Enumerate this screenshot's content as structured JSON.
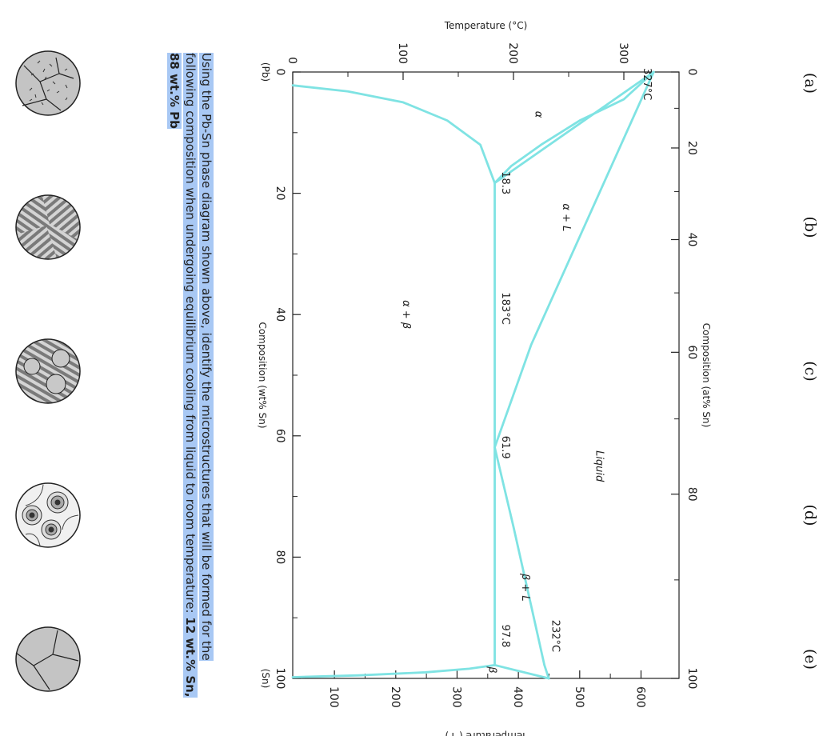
{
  "chart_data": {
    "type": "line",
    "title": "",
    "xlabel": "Composition (wt% Sn)",
    "x2label": "Composition (at% Sn)",
    "ylabel": "Temperature (°C)",
    "y2label": "Temperature (°F)",
    "xlim": [
      0,
      100
    ],
    "ylim": [
      0,
      350
    ],
    "y2lim": [
      32,
      662
    ],
    "x_ticks": [
      0,
      20,
      40,
      60,
      80,
      100
    ],
    "x2_ticks": [
      "0",
      "20",
      "40",
      "60",
      "80",
      "100"
    ],
    "y_ticks": [
      0,
      100,
      200,
      300
    ],
    "y2_ticks": [
      100,
      200,
      300,
      400,
      500,
      600
    ],
    "x_end_labels": [
      "(Pb)",
      "(Sn)"
    ],
    "line_color": "#7fe3e3",
    "series": [
      {
        "x": [
          0,
          4.5,
          8,
          12,
          15.5,
          18.3
        ],
        "y": [
          327,
          300,
          260,
          225,
          198,
          183
        ]
      },
      {
        "x": [
          0,
          18.3
        ],
        "y": [
          327,
          183
        ]
      },
      {
        "x": [
          0,
          15,
          30,
          45,
          61.9
        ],
        "y": [
          327,
          290,
          253,
          216,
          183
        ]
      },
      {
        "x": [
          61.9,
          75,
          88,
          97.8,
          100
        ],
        "y": [
          183,
          200,
          216,
          228,
          232
        ]
      },
      {
        "x": [
          97.8,
          100
        ],
        "y": [
          183,
          232
        ]
      },
      {
        "x": [
          18.3,
          97.8
        ],
        "y": [
          183,
          183
        ]
      },
      {
        "x": [
          2.2,
          3.2,
          5,
          8,
          12,
          18.3
        ],
        "y": [
          0,
          50,
          100,
          140,
          170,
          183
        ]
      },
      {
        "x": [
          97.8,
          98.4,
          99,
          99.5,
          99.8
        ],
        "y": [
          183,
          160,
          120,
          60,
          0
        ]
      }
    ],
    "annotations": [
      {
        "text": "327°C",
        "x": 2,
        "y": 318
      },
      {
        "text": "18.3",
        "x": 18.3,
        "y": 190
      },
      {
        "text": "183°C",
        "x": 39,
        "y": 190
      },
      {
        "text": "61.9",
        "x": 61.9,
        "y": 190
      },
      {
        "text": "97.8",
        "x": 93,
        "y": 190
      },
      {
        "text": "232°C",
        "x": 93,
        "y": 235
      },
      {
        "text": "α",
        "x": 7,
        "y": 220
      },
      {
        "text": "α + L",
        "x": 24,
        "y": 245
      },
      {
        "text": "Liquid",
        "x": 65,
        "y": 275
      },
      {
        "text": "α + β",
        "x": 40,
        "y": 100
      },
      {
        "text": "β + L",
        "x": 85,
        "y": 208
      },
      {
        "text": "β",
        "x": 98.6,
        "y": 178
      }
    ]
  },
  "question": {
    "text": "Using the Pb-Sn phase diagram shown above, identify the microstructures that will be formed for the following composition when undergoing equilibrium cooling from liquid to room temperature: ",
    "composition": "12 wt.% Sn, 88 wt.% Pb"
  },
  "options": [
    "(a)",
    "(b)",
    "(c)",
    "(d)",
    "(e)"
  ]
}
